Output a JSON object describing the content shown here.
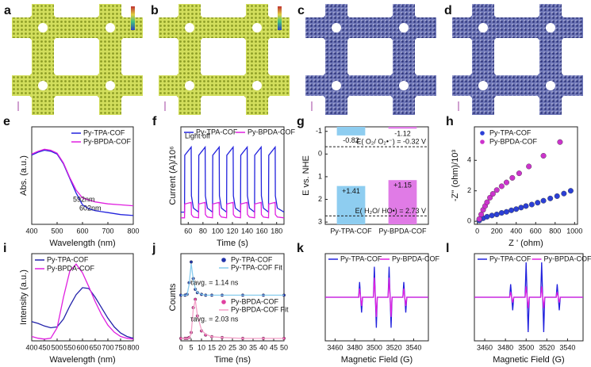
{
  "images": [
    {
      "panel": "a"
    },
    {
      "panel": "b"
    },
    {
      "panel": "c"
    },
    {
      "panel": "d"
    }
  ],
  "chart_data": [
    {
      "type": "line",
      "panel": "e",
      "xlabel": "Wavelength (nm)",
      "ylabel": "Abs. (a.u.)",
      "xlim": [
        400,
        800
      ],
      "ylim": [
        0,
        1
      ],
      "xticks": [
        400,
        500,
        600,
        700,
        800
      ],
      "x": [
        400,
        425,
        450,
        475,
        500,
        525,
        550,
        575,
        600,
        625,
        650,
        700,
        750,
        800
      ],
      "series": [
        {
          "name": "Py-TPA-COF",
          "color": "#2222dd",
          "values": [
            0.71,
            0.74,
            0.76,
            0.75,
            0.72,
            0.62,
            0.47,
            0.32,
            0.2,
            0.16,
            0.14,
            0.12,
            0.1,
            0.09
          ]
        },
        {
          "name": "Py-BPDA-COF",
          "color": "#e020e0",
          "values": [
            0.72,
            0.75,
            0.77,
            0.76,
            0.73,
            0.63,
            0.48,
            0.35,
            0.27,
            0.25,
            0.23,
            0.21,
            0.2,
            0.19
          ]
        }
      ],
      "legend": "upper right",
      "annotations": [
        "592nm",
        "602nm"
      ]
    },
    {
      "type": "line",
      "panel": "f",
      "xlabel": "Time (s)",
      "ylabel": "Current (A)/10⁶",
      "xlim": [
        50,
        190
      ],
      "ylim": [
        0,
        1.2
      ],
      "xticks": [
        60,
        80,
        100,
        120,
        140,
        160,
        180
      ],
      "x": [
        50,
        55,
        55.3,
        64,
        64.3,
        67,
        74,
        74.3,
        83,
        83.3,
        86,
        93,
        93.3,
        102,
        102.3,
        105,
        112,
        112.3,
        121,
        121.3,
        124,
        131,
        131.3,
        140,
        140.3,
        143,
        150,
        150.3,
        159,
        159.3,
        162,
        169,
        169.3,
        178,
        178.3,
        181,
        190
      ],
      "series": [
        {
          "name": "Py-TPA-COF",
          "color": "#2222dd",
          "values": [
            0.15,
            0.15,
            0.85,
            0.95,
            0.35,
            0.2,
            0.15,
            0.85,
            0.95,
            0.35,
            0.2,
            0.15,
            0.85,
            0.95,
            0.35,
            0.2,
            0.15,
            0.85,
            0.95,
            0.35,
            0.2,
            0.15,
            0.85,
            0.95,
            0.35,
            0.2,
            0.15,
            0.85,
            0.95,
            0.35,
            0.2,
            0.15,
            0.85,
            0.95,
            0.35,
            0.2,
            0.15
          ]
        },
        {
          "name": "Py-BPDA-COF",
          "color": "#e020e0",
          "values": [
            0.08,
            0.08,
            0.25,
            0.27,
            0.12,
            0.09,
            0.08,
            0.25,
            0.27,
            0.12,
            0.09,
            0.08,
            0.25,
            0.27,
            0.12,
            0.09,
            0.08,
            0.25,
            0.27,
            0.12,
            0.09,
            0.08,
            0.25,
            0.27,
            0.12,
            0.09,
            0.08,
            0.25,
            0.27,
            0.12,
            0.09,
            0.08,
            0.25,
            0.27,
            0.12,
            0.09,
            0.08
          ]
        }
      ],
      "legend": "upper center",
      "annotations": [
        "Light off"
      ]
    },
    {
      "type": "rangebar",
      "panel": "g",
      "ylabel": "E vs. NHE",
      "ylim": [
        3.1,
        -1.2
      ],
      "yticks": [
        -1,
        0,
        1,
        2,
        3
      ],
      "categories": [
        "Py-TPA-COF",
        "Py-BPDA-COF"
      ],
      "colors": [
        "#8ecdf0",
        "#e07be6"
      ],
      "low": [
        -0.82,
        -1.12
      ],
      "high": [
        1.41,
        1.15
      ],
      "low_labels": [
        "-0.82",
        "-1.12"
      ],
      "high_labels": [
        "+1.41",
        "+1.15"
      ],
      "hlines": [
        {
          "value": -0.32,
          "label": "E( O₂/ O₂•⁻) = -0.32 V"
        },
        {
          "value": 2.73,
          "label": "E( H₂O/ HO•) = 2.73 V"
        }
      ]
    },
    {
      "type": "scatter",
      "panel": "h",
      "xlabel": "Z ' (ohm)",
      "ylabel": "-Z'' (ohm)/10³",
      "xlim": [
        -30,
        1030
      ],
      "ylim": [
        -0.2,
        6.2
      ],
      "xticks": [
        0,
        200,
        400,
        600,
        800,
        1000
      ],
      "yticks": [
        0,
        2,
        4
      ],
      "series": [
        {
          "name": "Py-TPA-COF",
          "color": "#2b3fd6",
          "x": [
            20,
            60,
            100,
            150,
            200,
            250,
            300,
            350,
            400,
            450,
            500,
            560,
            620,
            680,
            750,
            820,
            890,
            960
          ],
          "values": [
            0.05,
            0.2,
            0.3,
            0.38,
            0.45,
            0.55,
            0.62,
            0.72,
            0.8,
            0.9,
            1.0,
            1.1,
            1.22,
            1.35,
            1.5,
            1.65,
            1.82,
            2.0
          ]
        },
        {
          "name": "Py-BPDA-COF",
          "color": "#cc33cc",
          "x": [
            20,
            40,
            60,
            80,
            100,
            130,
            160,
            200,
            250,
            300,
            360,
            430,
            530,
            680,
            850
          ],
          "values": [
            0.15,
            0.45,
            0.75,
            1.0,
            1.25,
            1.55,
            1.8,
            2.05,
            2.3,
            2.55,
            2.85,
            3.15,
            3.6,
            4.3,
            5.2
          ]
        }
      ],
      "legend": "upper left"
    },
    {
      "type": "line",
      "panel": "i",
      "xlabel": "Wavelength (nm)",
      "ylabel": "Intensity (a.u.)",
      "xlim": [
        400,
        800
      ],
      "ylim": [
        0,
        1
      ],
      "xticks": [
        400,
        450,
        500,
        550,
        600,
        650,
        700,
        750,
        800
      ],
      "x": [
        400,
        425,
        450,
        475,
        500,
        525,
        550,
        575,
        600,
        625,
        650,
        675,
        700,
        725,
        750,
        775,
        800
      ],
      "series": [
        {
          "name": "Py-TPA-COF",
          "color": "#2222aa",
          "values": [
            0.22,
            0.2,
            0.17,
            0.15,
            0.16,
            0.25,
            0.4,
            0.53,
            0.61,
            0.6,
            0.5,
            0.38,
            0.26,
            0.16,
            0.09,
            0.05,
            0.03
          ]
        },
        {
          "name": "Py-BPDA-COF",
          "color": "#e020e0",
          "values": [
            0.05,
            0.03,
            0.02,
            0.03,
            0.15,
            0.5,
            0.8,
            0.88,
            0.78,
            0.62,
            0.45,
            0.3,
            0.18,
            0.1,
            0.05,
            0.03,
            0.02
          ]
        }
      ],
      "legend": "upper left"
    },
    {
      "type": "line",
      "panel": "j",
      "xlabel": "Time (ns)",
      "ylabel": "Counts",
      "xlim": [
        0,
        50
      ],
      "ylim": [
        0,
        1.05
      ],
      "xticks": [
        0,
        5,
        10,
        15,
        20,
        25,
        30,
        35,
        40,
        45,
        50
      ],
      "x": [
        0,
        2,
        3,
        4,
        5,
        6,
        7,
        8,
        10,
        12,
        15,
        20,
        30,
        40,
        50
      ],
      "series": [
        {
          "name": "Py-TPA-COF",
          "color": "#2233aa",
          "mode": "markers",
          "values": [
            0.55,
            0.55,
            0.56,
            0.7,
            0.95,
            0.75,
            0.62,
            0.58,
            0.56,
            0.55,
            0.55,
            0.55,
            0.55,
            0.55,
            0.55
          ]
        },
        {
          "name": "Py-TPA-COF Fit",
          "color": "#88ccee",
          "mode": "line",
          "values": [
            0.55,
            0.55,
            0.55,
            0.68,
            0.93,
            0.74,
            0.63,
            0.58,
            0.56,
            0.55,
            0.55,
            0.55,
            0.55,
            0.55,
            0.55
          ]
        },
        {
          "name": "Py-BPDA-COF",
          "color": "#e040a0",
          "mode": "markers",
          "values": [
            0.03,
            0.03,
            0.03,
            0.04,
            0.1,
            0.4,
            0.5,
            0.3,
            0.12,
            0.07,
            0.05,
            0.04,
            0.03,
            0.03,
            0.03
          ]
        },
        {
          "name": "Py-BPDA-COF Fit",
          "color": "#f4a0c8",
          "mode": "line",
          "values": [
            0.03,
            0.03,
            0.03,
            0.03,
            0.09,
            0.38,
            0.49,
            0.31,
            0.13,
            0.08,
            0.05,
            0.04,
            0.03,
            0.03,
            0.03
          ]
        }
      ],
      "legend": "split",
      "annotations": [
        "τavg. = 1.14 ns",
        "τavg. = 2.03 ns"
      ]
    },
    {
      "type": "line",
      "panel": "k",
      "xlabel": "Magnetic Field (G)",
      "xlim": [
        3450,
        3555
      ],
      "ylim": [
        -1,
        1
      ],
      "xticks": [
        3460,
        3480,
        3500,
        3520,
        3540
      ],
      "x": [
        3450,
        3484,
        3485,
        3487,
        3488,
        3499,
        3500,
        3502,
        3503,
        3514,
        3515,
        3517,
        3518,
        3529,
        3530,
        3532,
        3533,
        3555
      ],
      "series": [
        {
          "name": "Py-TPA-COF",
          "color": "#2222dd",
          "values": [
            0,
            0,
            0.35,
            -0.35,
            0,
            0,
            0.7,
            -0.7,
            0,
            0,
            0.7,
            -0.7,
            0,
            0,
            0.35,
            -0.35,
            0,
            0
          ]
        },
        {
          "name": "Py-BPDA-COF",
          "color": "#e020e0",
          "values": [
            0,
            0,
            0.2,
            -0.2,
            0,
            0,
            0.45,
            -0.45,
            0,
            0,
            0.45,
            -0.45,
            0,
            0,
            0.2,
            -0.2,
            0,
            0
          ]
        }
      ],
      "legend": "upper center"
    },
    {
      "type": "line",
      "panel": "l",
      "xlabel": "Magnetic Field (G)",
      "xlim": [
        3450,
        3555
      ],
      "ylim": [
        -1,
        1
      ],
      "xticks": [
        3460,
        3480,
        3500,
        3520,
        3540
      ],
      "x": [
        3450,
        3484,
        3485,
        3487,
        3488,
        3499,
        3500,
        3502,
        3503,
        3514,
        3515,
        3517,
        3518,
        3529,
        3530,
        3532,
        3533,
        3555
      ],
      "series": [
        {
          "name": "Py-TPA-COF",
          "color": "#2222dd",
          "values": [
            0,
            0,
            0.3,
            -0.3,
            0,
            0,
            0.8,
            -0.8,
            0,
            0,
            0.8,
            -0.8,
            0,
            0,
            0.3,
            -0.3,
            0,
            0
          ]
        },
        {
          "name": "Py-BPDA-COF",
          "color": "#e020e0",
          "values": [
            0,
            0,
            0.12,
            -0.12,
            0,
            0,
            0.25,
            -0.25,
            0,
            0,
            0.25,
            -0.25,
            0,
            0,
            0.12,
            -0.12,
            0,
            0
          ]
        }
      ],
      "legend": "upper center"
    }
  ]
}
